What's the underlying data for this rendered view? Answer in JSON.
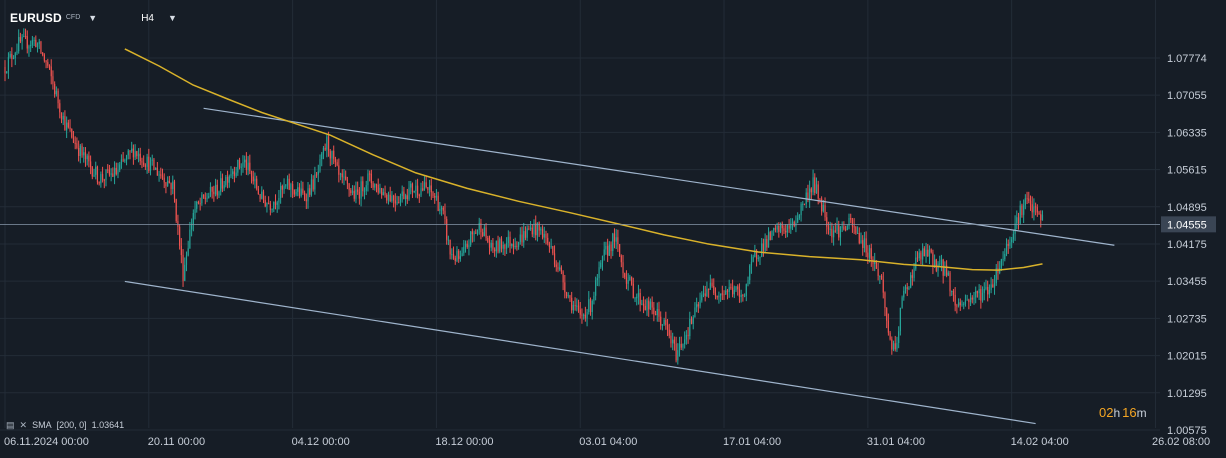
{
  "header": {
    "symbol": "EURUSD",
    "symbol_badge": "CFD",
    "timeframe": "H4"
  },
  "indicator_legend": {
    "name": "SMA",
    "params": "[200, 0]",
    "value": "1.03641"
  },
  "countdown": {
    "hours": "02",
    "hours_unit": "h",
    "minutes": "16",
    "minutes_unit": "m"
  },
  "colors": {
    "background": "#161d26",
    "bull": "#26a69a",
    "bear": "#ef5350",
    "sma": "#d9b22a",
    "channel": "#9fb4cc",
    "price_line": "#8696a8",
    "price_label_bg": "#3a4554",
    "grid": "#232c37",
    "countdown": "#f5a623"
  },
  "chart_data": {
    "type": "candlestick",
    "symbol": "EURUSD",
    "timeframe": "H4",
    "grid": true,
    "ylim": [
      1.0022,
      1.0825
    ],
    "y_ticks": [
      "1.07774",
      "1.07055",
      "1.06335",
      "1.05615",
      "1.04895",
      "1.04175",
      "1.03455",
      "1.02735",
      "1.02015",
      "1.01295",
      "1.00575"
    ],
    "current_price": "1.04555",
    "x_tick_labels": [
      "06.11.2024 00:00",
      "20.11 00:00",
      "04.12 00:00",
      "18.12 00:00",
      "03.01 04:00",
      "17.01 04:00",
      "31.01 04:00",
      "14.02 04:00",
      "26.02 08:00"
    ],
    "x_tick_index": [
      0,
      84,
      168,
      252,
      336,
      420,
      504,
      588,
      672
    ],
    "candle_count": 606,
    "sma_200": [
      [
        70,
        1.0795
      ],
      [
        90,
        1.0762
      ],
      [
        110,
        1.0725
      ],
      [
        130,
        1.0698
      ],
      [
        150,
        1.0672
      ],
      [
        170,
        1.065
      ],
      [
        190,
        1.0628
      ],
      [
        215,
        1.059
      ],
      [
        240,
        1.0555
      ],
      [
        270,
        1.0525
      ],
      [
        300,
        1.05
      ],
      [
        330,
        1.0478
      ],
      [
        360,
        1.0455
      ],
      [
        385,
        1.0435
      ],
      [
        410,
        1.0418
      ],
      [
        440,
        1.0402
      ],
      [
        470,
        1.0393
      ],
      [
        500,
        1.0387
      ],
      [
        525,
        1.0378
      ],
      [
        545,
        1.0374
      ],
      [
        565,
        1.0368
      ],
      [
        580,
        1.0367
      ],
      [
        595,
        1.0372
      ],
      [
        606,
        1.0379
      ]
    ],
    "channel_upper": [
      [
        116,
        1.068
      ],
      [
        648,
        1.0415
      ]
    ],
    "channel_lower": [
      [
        70,
        1.0345
      ],
      [
        602,
        1.007
      ]
    ],
    "swings": [
      [
        0,
        1.076
      ],
      [
        8,
        1.0805
      ],
      [
        18,
        1.081
      ],
      [
        25,
        1.076
      ],
      [
        35,
        1.065
      ],
      [
        45,
        1.059
      ],
      [
        55,
        1.0545
      ],
      [
        65,
        1.0555
      ],
      [
        75,
        1.06
      ],
      [
        85,
        1.057
      ],
      [
        98,
        1.053
      ],
      [
        104,
        1.036
      ],
      [
        110,
        1.048
      ],
      [
        118,
        1.051
      ],
      [
        125,
        1.0525
      ],
      [
        132,
        1.056
      ],
      [
        140,
        1.0575
      ],
      [
        150,
        1.0505
      ],
      [
        155,
        1.0495
      ],
      [
        165,
        1.053
      ],
      [
        175,
        1.051
      ],
      [
        182,
        1.0545
      ],
      [
        188,
        1.0615
      ],
      [
        195,
        1.0545
      ],
      [
        205,
        1.051
      ],
      [
        212,
        1.0545
      ],
      [
        220,
        1.052
      ],
      [
        228,
        1.0505
      ],
      [
        238,
        1.0525
      ],
      [
        246,
        1.0525
      ],
      [
        252,
        1.0505
      ],
      [
        256,
        1.047
      ],
      [
        260,
        1.04
      ],
      [
        266,
        1.0385
      ],
      [
        272,
        1.043
      ],
      [
        278,
        1.0455
      ],
      [
        284,
        1.0405
      ],
      [
        292,
        1.042
      ],
      [
        300,
        1.0425
      ],
      [
        308,
        1.045
      ],
      [
        314,
        1.044
      ],
      [
        320,
        1.04
      ],
      [
        324,
        1.0365
      ],
      [
        330,
        1.031
      ],
      [
        336,
        1.0275
      ],
      [
        342,
        1.03
      ],
      [
        350,
        1.0395
      ],
      [
        356,
        1.043
      ],
      [
        362,
        1.036
      ],
      [
        368,
        1.032
      ],
      [
        374,
        1.03
      ],
      [
        380,
        1.0285
      ],
      [
        386,
        1.0255
      ],
      [
        392,
        1.0205
      ],
      [
        398,
        1.0245
      ],
      [
        404,
        1.029
      ],
      [
        410,
        1.0335
      ],
      [
        418,
        1.0325
      ],
      [
        426,
        1.033
      ],
      [
        430,
        1.031
      ],
      [
        434,
        1.035
      ],
      [
        438,
        1.0395
      ],
      [
        444,
        1.042
      ],
      [
        452,
        1.0445
      ],
      [
        460,
        1.045
      ],
      [
        466,
        1.0495
      ],
      [
        472,
        1.0535
      ],
      [
        477,
        1.0495
      ],
      [
        482,
        1.0445
      ],
      [
        488,
        1.0445
      ],
      [
        494,
        1.0455
      ],
      [
        500,
        1.0425
      ],
      [
        506,
        1.0395
      ],
      [
        512,
        1.0345
      ],
      [
        516,
        1.0245
      ],
      [
        520,
        1.02
      ],
      [
        524,
        1.031
      ],
      [
        528,
        1.0345
      ],
      [
        533,
        1.039
      ],
      [
        538,
        1.04
      ],
      [
        544,
        1.038
      ],
      [
        550,
        1.0365
      ],
      [
        555,
        1.03
      ],
      [
        560,
        1.0305
      ],
      [
        568,
        1.032
      ],
      [
        575,
        1.033
      ],
      [
        580,
        1.037
      ],
      [
        586,
        1.042
      ],
      [
        591,
        1.0465
      ],
      [
        596,
        1.05
      ],
      [
        600,
        1.0485
      ],
      [
        606,
        1.0465
      ]
    ]
  }
}
